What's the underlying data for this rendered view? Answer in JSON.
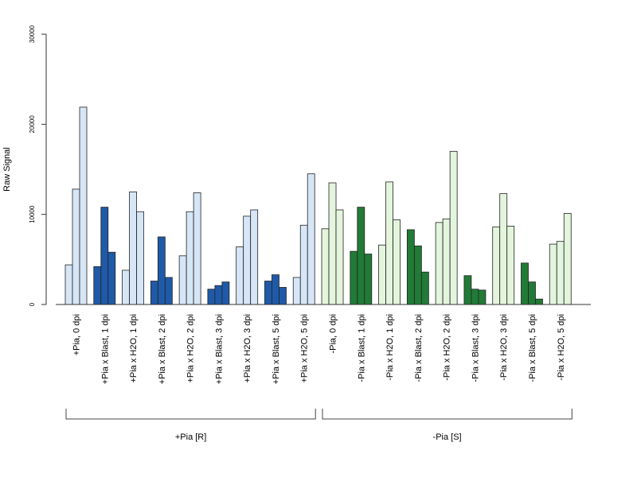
{
  "chart_data": {
    "type": "bar",
    "ylabel": "Raw Signal",
    "ylim": [
      0,
      30000
    ],
    "yticks": [
      0,
      10000,
      20000,
      30000
    ],
    "categories": [
      "+Pia, 0 dpi",
      "+Pia x Blast, 1 dpi",
      "+Pia x H2O, 1 dpi",
      "+Pia x Blast, 2 dpi",
      "+Pia x H2O, 2 dpi",
      "+Pia x Blast, 3 dpi",
      "+Pia x H2O, 3 dpi",
      "+Pia x Blast, 5 dpi",
      "+Pia x H2O, 5 dpi",
      "-Pia, 0 dpi",
      "-Pia x Blast, 1 dpi",
      "-Pia x H2O, 1 dpi",
      "-Pia x Blast, 2 dpi",
      "-Pia x H2O, 2 dpi",
      "-Pia x Blast, 3 dpi",
      "-Pia x H2O, 3 dpi",
      "-Pia x Blast, 5 dpi",
      "-Pia x H2O, 5 dpi"
    ],
    "replicates": [
      [
        4400,
        12800,
        21900
      ],
      [
        4200,
        10800,
        5800
      ],
      [
        3800,
        12500,
        10300
      ],
      [
        2600,
        7500,
        3000
      ],
      [
        5400,
        10300,
        12400
      ],
      [
        1700,
        2100,
        2500
      ],
      [
        6400,
        9800,
        10500
      ],
      [
        2600,
        3300,
        1900
      ],
      [
        3000,
        8800,
        14500
      ],
      [
        8400,
        13500,
        10500
      ],
      [
        5900,
        10800,
        5600
      ],
      [
        6600,
        13600,
        9400
      ],
      [
        8300,
        6500,
        3600
      ],
      [
        9100,
        9500,
        17000
      ],
      [
        3200,
        1700,
        1600
      ],
      [
        8600,
        12300,
        8700
      ],
      [
        4600,
        2500,
        600
      ],
      [
        6700,
        7000,
        10100
      ]
    ],
    "bar_colors": [
      "#d6e6f7",
      "#1f5aa8",
      "#d6e6f7",
      "#1f5aa8",
      "#d6e6f7",
      "#1f5aa8",
      "#d6e6f7",
      "#1f5aa8",
      "#d6e6f7",
      "#e3f5dc",
      "#217b36",
      "#e3f5dc",
      "#217b36",
      "#e3f5dc",
      "#217b36",
      "#e3f5dc",
      "#217b36",
      "#e3f5dc"
    ],
    "groups": [
      {
        "label": "+Pia [R]",
        "from": 0,
        "to": 8
      },
      {
        "label": "-Pia [S]",
        "from": 9,
        "to": 17
      }
    ]
  }
}
